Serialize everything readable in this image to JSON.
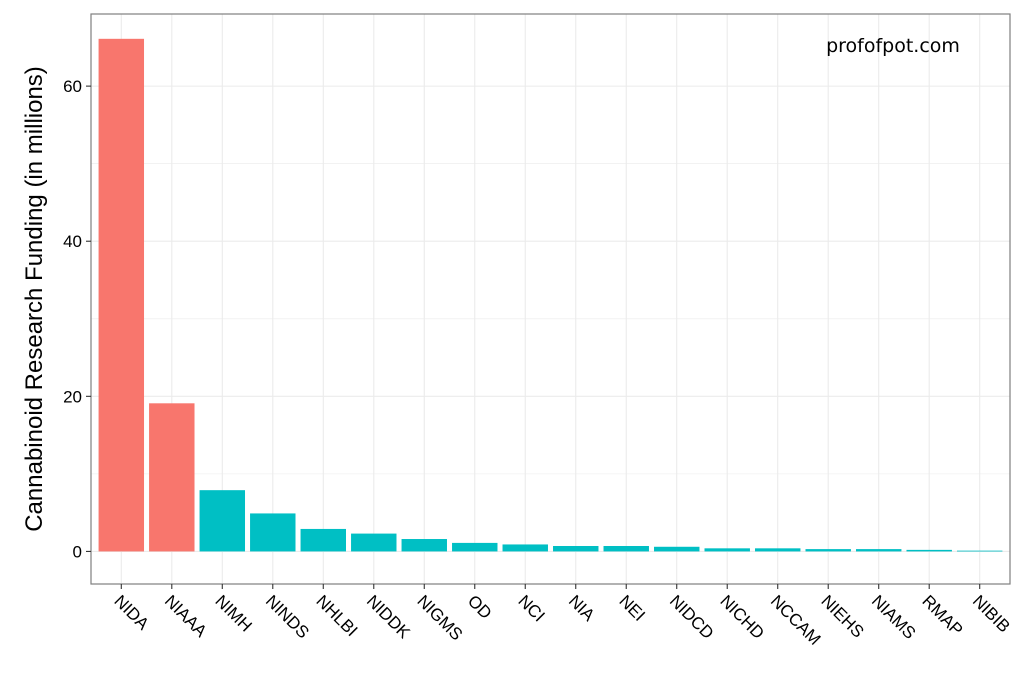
{
  "chart_data": {
    "type": "bar",
    "title": "",
    "xlabel": "",
    "ylabel": "Cannabinoid Research Funding (in millions)",
    "annotation": "profofpot.com",
    "ylim": [
      -4.2,
      69.3
    ],
    "yticks": [
      0,
      20,
      40,
      60
    ],
    "grid": true,
    "legend": "none",
    "colors": {
      "highlight": "#F8766D",
      "other": "#00BFC4",
      "grid": "#EBEBEB",
      "border": "#7F7F7F"
    },
    "categories": [
      "NIDA",
      "NIAAA",
      "NIMH",
      "NINDS",
      "NHLBI",
      "NIDDK",
      "NIGMS",
      "OD",
      "NCI",
      "NIA",
      "NEI",
      "NIDCD",
      "NICHD",
      "NCCAM",
      "NIEHS",
      "NIAMS",
      "RMAP",
      "NIBIB"
    ],
    "values": [
      66.1,
      19.1,
      7.9,
      4.9,
      2.9,
      2.3,
      1.6,
      1.1,
      0.9,
      0.7,
      0.7,
      0.6,
      0.4,
      0.4,
      0.3,
      0.3,
      0.2,
      0.1
    ],
    "groups": [
      "highlight",
      "highlight",
      "other",
      "other",
      "other",
      "other",
      "other",
      "other",
      "other",
      "other",
      "other",
      "other",
      "other",
      "other",
      "other",
      "other",
      "other",
      "other"
    ]
  }
}
